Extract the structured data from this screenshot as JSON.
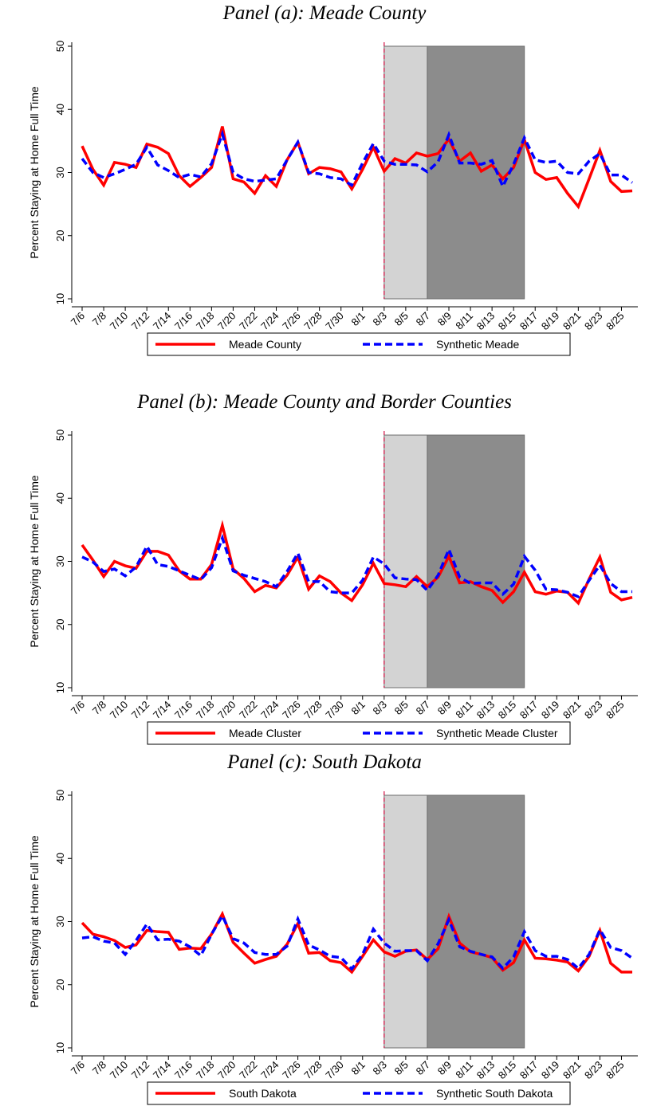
{
  "chart_data": [
    {
      "type": "line",
      "title": "Panel (a): Meade County",
      "ylabel": "Percent Staying at Home Full Time",
      "categories": [
        "7/6",
        null,
        "7/8",
        null,
        "7/10",
        null,
        "7/12",
        null,
        "7/14",
        null,
        "7/16",
        null,
        "7/18",
        null,
        "7/20",
        null,
        "7/22",
        null,
        "7/24",
        null,
        "7/26",
        null,
        "7/28",
        null,
        "7/30",
        null,
        "8/1",
        null,
        "8/3",
        null,
        "8/5",
        null,
        "8/7",
        null,
        "8/9",
        null,
        "8/11",
        null,
        "8/13",
        null,
        "8/15",
        null,
        "8/17",
        null,
        "8/19",
        null,
        "8/21",
        null,
        "8/23",
        null,
        "8/25",
        null
      ],
      "series": [
        {
          "name": "Meade County",
          "color": "#ff0000",
          "dash": "solid",
          "values": [
            34.2,
            30.5,
            28,
            31.6,
            31.3,
            30.8,
            34.5,
            34,
            33,
            29.5,
            27.8,
            29.2,
            30.8,
            37.3,
            29,
            28.5,
            26.7,
            29.5,
            27.8,
            32,
            34.8,
            29.8,
            30.8,
            30.6,
            30.1,
            27.4,
            30.5,
            34,
            30.2,
            32.2,
            31.5,
            33.1,
            32.6,
            33,
            35.3,
            31.8,
            33.1,
            30.2,
            31.2,
            29,
            30.8,
            35.2,
            30,
            28.9,
            29.2,
            26.7,
            24.6,
            29,
            33.5,
            28.6,
            27,
            27.1
          ]
        },
        {
          "name": "Synthetic Meade",
          "color": "#0000ff",
          "dash": "dashed",
          "values": [
            32.2,
            30,
            29.2,
            29.8,
            30.5,
            31.3,
            34,
            31.2,
            30.3,
            29.2,
            29.7,
            29.3,
            31.4,
            36.1,
            30,
            29,
            28.6,
            28.8,
            29,
            32,
            34.8,
            30,
            29.8,
            29.2,
            29,
            28,
            31.5,
            34.6,
            31.8,
            31.3,
            31.3,
            31.2,
            30.1,
            31.7,
            36,
            31.5,
            31.5,
            31.3,
            31.9,
            27.8,
            31.3,
            35.5,
            32,
            31.6,
            31.8,
            30,
            29.8,
            31.8,
            33,
            29.6,
            29.6,
            28.4
          ]
        }
      ],
      "ylim": [
        10,
        50
      ],
      "yticks": [
        10,
        20,
        30,
        40,
        50
      ],
      "shaded_periods": [
        {
          "start": 28,
          "end": 32,
          "color": "#d3d3d3"
        },
        {
          "start": 32,
          "end": 41,
          "color": "#8c8c8c"
        }
      ],
      "event_line": {
        "at": 28,
        "color": "#d62050"
      }
    },
    {
      "type": "line",
      "title": "Panel (b): Meade County and Border Counties",
      "ylabel": "Percent Staying at Home Full Time",
      "categories": [
        "7/6",
        null,
        "7/8",
        null,
        "7/10",
        null,
        "7/12",
        null,
        "7/14",
        null,
        "7/16",
        null,
        "7/18",
        null,
        "7/20",
        null,
        "7/22",
        null,
        "7/24",
        null,
        "7/26",
        null,
        "7/28",
        null,
        "7/30",
        null,
        "8/1",
        null,
        "8/3",
        null,
        "8/5",
        null,
        "8/7",
        null,
        "8/9",
        null,
        "8/11",
        null,
        "8/13",
        null,
        "8/15",
        null,
        "8/17",
        null,
        "8/19",
        null,
        "8/21",
        null,
        "8/23",
        null,
        "8/25",
        null
      ],
      "series": [
        {
          "name": "Meade Cluster",
          "color": "#ff0000",
          "dash": "solid",
          "values": [
            32.6,
            30.2,
            27.6,
            30,
            29.3,
            28.9,
            31.6,
            31.6,
            31,
            28.5,
            27.2,
            27.2,
            29.5,
            35.7,
            28.8,
            27.3,
            25.2,
            26.2,
            25.8,
            27.8,
            30.7,
            25.6,
            27.7,
            26.8,
            25,
            23.8,
            26.3,
            29.7,
            26.5,
            26.3,
            26,
            27.6,
            26,
            27.5,
            30.8,
            26.6,
            26.8,
            26,
            25.4,
            23.5,
            25.2,
            28.3,
            25.2,
            24.8,
            25.3,
            25.1,
            23.4,
            27.2,
            30.7,
            25.1,
            23.9,
            24.3
          ]
        },
        {
          "name": "Synthetic Meade Cluster",
          "color": "#0000ff",
          "dash": "dashed",
          "values": [
            30.7,
            29.9,
            28.4,
            28.8,
            27.7,
            29.1,
            32.4,
            29.5,
            29.2,
            28.5,
            27.8,
            27.1,
            29,
            33.7,
            28.5,
            27.8,
            27.3,
            26.8,
            26,
            28.4,
            31.3,
            26.8,
            26.8,
            25.2,
            25,
            25,
            27,
            30.7,
            29.6,
            27.4,
            27.2,
            27.1,
            25.4,
            27.8,
            31.9,
            27.5,
            26.5,
            26.6,
            26.6,
            24.8,
            26.4,
            30.8,
            28.6,
            25.6,
            25.5,
            25.1,
            24.4,
            27,
            29.4,
            26.5,
            25.2,
            25.2
          ]
        }
      ],
      "ylim": [
        10,
        50
      ],
      "yticks": [
        10,
        20,
        30,
        40,
        50
      ],
      "shaded_periods": [
        {
          "start": 28,
          "end": 32,
          "color": "#d3d3d3"
        },
        {
          "start": 32,
          "end": 41,
          "color": "#8c8c8c"
        }
      ],
      "event_line": {
        "at": 28,
        "color": "#d62050"
      }
    },
    {
      "type": "line",
      "title": "Panel (c): South Dakota",
      "ylabel": "Percent Staying at Home Full Time",
      "categories": [
        "7/6",
        null,
        "7/8",
        null,
        "7/10",
        null,
        "7/12",
        null,
        "7/14",
        null,
        "7/16",
        null,
        "7/18",
        null,
        "7/20",
        null,
        "7/22",
        null,
        "7/24",
        null,
        "7/26",
        null,
        "7/28",
        null,
        "7/30",
        null,
        "8/1",
        null,
        "8/3",
        null,
        "8/5",
        null,
        "8/7",
        null,
        "8/9",
        null,
        "8/11",
        null,
        "8/13",
        null,
        "8/15",
        null,
        "8/17",
        null,
        "8/19",
        null,
        "8/21",
        null,
        "8/23",
        null,
        "8/25",
        null
      ],
      "series": [
        {
          "name": "South Dakota",
          "color": "#ff0000",
          "dash": "solid",
          "values": [
            29.8,
            28,
            27.6,
            27,
            25.9,
            26.3,
            28.6,
            28.4,
            28.3,
            25.6,
            25.8,
            25.7,
            28,
            31.2,
            26.7,
            25,
            23.4,
            24,
            24.5,
            26.4,
            29.7,
            25,
            25.1,
            23.8,
            23.5,
            22,
            24.5,
            27.1,
            25.2,
            24.5,
            25.3,
            25.5,
            24,
            25.7,
            30.8,
            26.6,
            25.2,
            24.8,
            24.3,
            22.3,
            23.5,
            27.1,
            24.2,
            24.1,
            23.9,
            23.6,
            22.2,
            24.5,
            28.6,
            23.4,
            22,
            22
          ]
        },
        {
          "name": "Synthetic South Dakota",
          "color": "#0000ff",
          "dash": "dashed",
          "values": [
            27.4,
            27.6,
            26.9,
            26.6,
            24.8,
            27,
            29.6,
            27.1,
            27.2,
            26.9,
            26,
            24.6,
            28,
            30.9,
            27.3,
            26.6,
            25.1,
            24.8,
            24.8,
            26.1,
            30.4,
            26.3,
            25.5,
            24.5,
            24.3,
            22.5,
            24.8,
            28.8,
            26.6,
            25.3,
            25.4,
            25.4,
            23.8,
            26.5,
            30.3,
            26,
            25.3,
            24.8,
            24.4,
            22.6,
            24.4,
            28.4,
            25.4,
            24.5,
            24.5,
            24,
            22.6,
            24.8,
            28.7,
            25.9,
            25.4,
            24.2
          ]
        }
      ],
      "ylim": [
        10,
        50
      ],
      "yticks": [
        10,
        20,
        30,
        40,
        50
      ],
      "shaded_periods": [
        {
          "start": 28,
          "end": 32,
          "color": "#d3d3d3"
        },
        {
          "start": 32,
          "end": 41,
          "color": "#8c8c8c"
        }
      ],
      "event_line": {
        "at": 28,
        "color": "#d62050"
      }
    }
  ]
}
